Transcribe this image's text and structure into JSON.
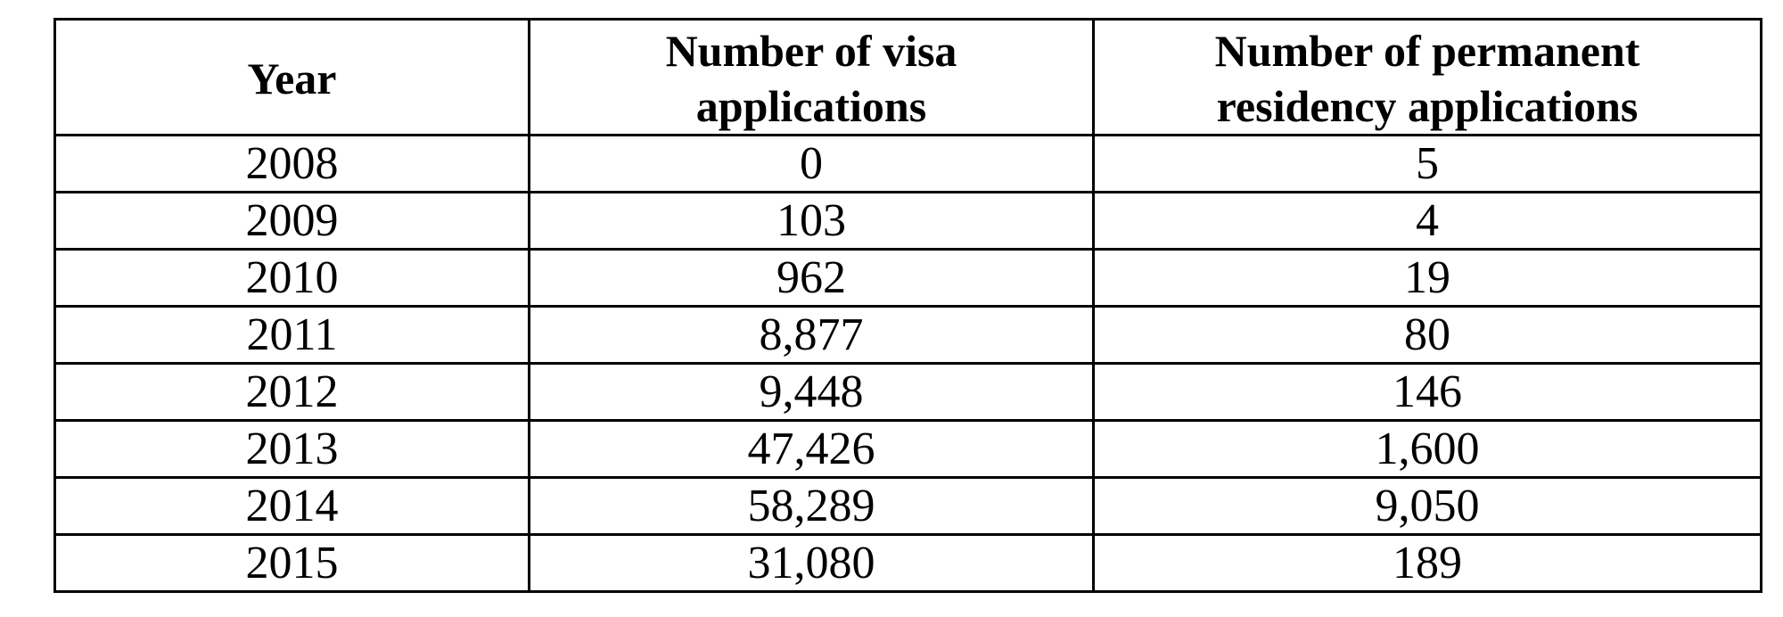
{
  "table": {
    "headers": [
      {
        "lines": [
          "Year"
        ]
      },
      {
        "lines": [
          "Number of visa",
          "applications"
        ]
      },
      {
        "lines": [
          "Number of permanent",
          "residency applications"
        ]
      }
    ],
    "rows": [
      [
        "2008",
        "0",
        "5"
      ],
      [
        "2009",
        "103",
        "4"
      ],
      [
        "2010",
        "962",
        "19"
      ],
      [
        "2011",
        "8,877",
        "80"
      ],
      [
        "2012",
        "9,448",
        "146"
      ],
      [
        "2013",
        "47,426",
        "1,600"
      ],
      [
        "2014",
        "58,289",
        "9,050"
      ],
      [
        "2015",
        "31,080",
        "189"
      ]
    ]
  }
}
